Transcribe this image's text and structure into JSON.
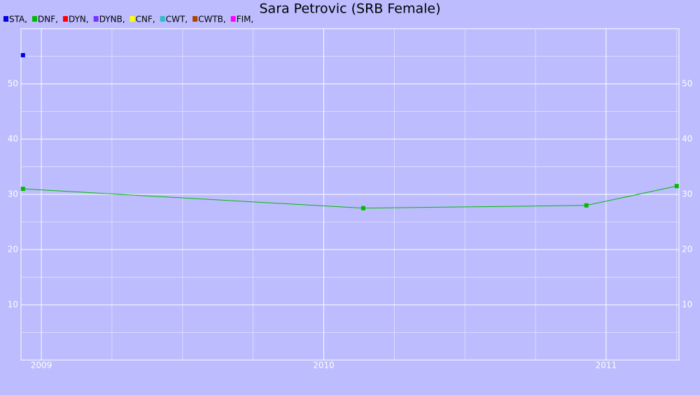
{
  "chart_data": {
    "type": "line",
    "title": "Sara Petrovic (SRB Female)",
    "xlim": [
      2008.928,
      2011.258
    ],
    "xticks": [
      2009,
      2010,
      2011
    ],
    "xminorticks": [
      2009.25,
      2009.5,
      2009.75,
      2010.25,
      2010.5,
      2010.75,
      2011.25
    ],
    "ylim": [
      0,
      60
    ],
    "yticks": [
      10,
      20,
      30,
      40,
      50
    ],
    "yminorticks": [
      5,
      15,
      25,
      35,
      45,
      55
    ],
    "grid": true,
    "series": [
      {
        "name": "STA,",
        "color": "#0000dd",
        "x": [
          2008.935
        ],
        "values": [
          55.2
        ]
      },
      {
        "name": "DNF,",
        "color": "#00bb00",
        "x": [
          2008.935,
          2010.14,
          2010.93,
          2011.25
        ],
        "values": [
          31.0,
          27.5,
          28.0,
          31.5
        ]
      },
      {
        "name": "DYN,",
        "color": "#ff0000",
        "x": [],
        "values": []
      },
      {
        "name": "DYNB,",
        "color": "#7733ff",
        "x": [],
        "values": []
      },
      {
        "name": "CNF,",
        "color": "#ffff00",
        "x": [],
        "values": []
      },
      {
        "name": "CWT,",
        "color": "#33bbcc",
        "x": [],
        "values": []
      },
      {
        "name": "CWTB,",
        "color": "#aa4400",
        "x": [],
        "values": []
      },
      {
        "name": "FIM,",
        "color": "#ff00ff",
        "x": [],
        "values": []
      }
    ]
  }
}
